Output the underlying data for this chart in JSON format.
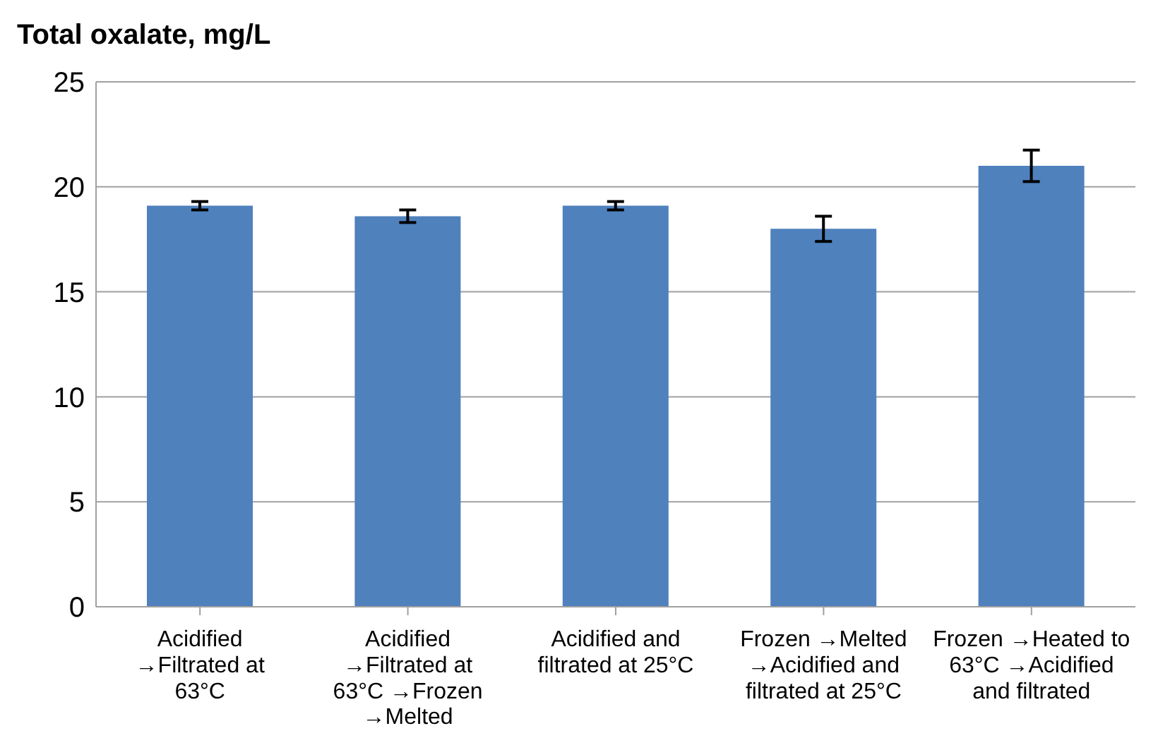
{
  "chart_data": {
    "type": "bar",
    "ylabel": "Total oxalate, mg/L",
    "categories": [
      "Acidified →Filtrated at 63°C",
      "Acidified →Filtrated at 63°C →Frozen →Melted",
      "Acidified and filtrated at 25°C",
      "Frozen →Melted →Acidified and filtrated at 25°C",
      "Frozen →Heated to 63°C →Acidified and filtrated"
    ],
    "values": [
      19.1,
      18.6,
      19.1,
      18.0,
      21.0
    ],
    "errors": [
      0.2,
      0.3,
      0.2,
      0.6,
      0.75
    ],
    "color": "#4f81bd",
    "ylim": [
      0,
      25
    ],
    "yticks": [
      0,
      5,
      10,
      15,
      20,
      25
    ],
    "grid": "y"
  }
}
